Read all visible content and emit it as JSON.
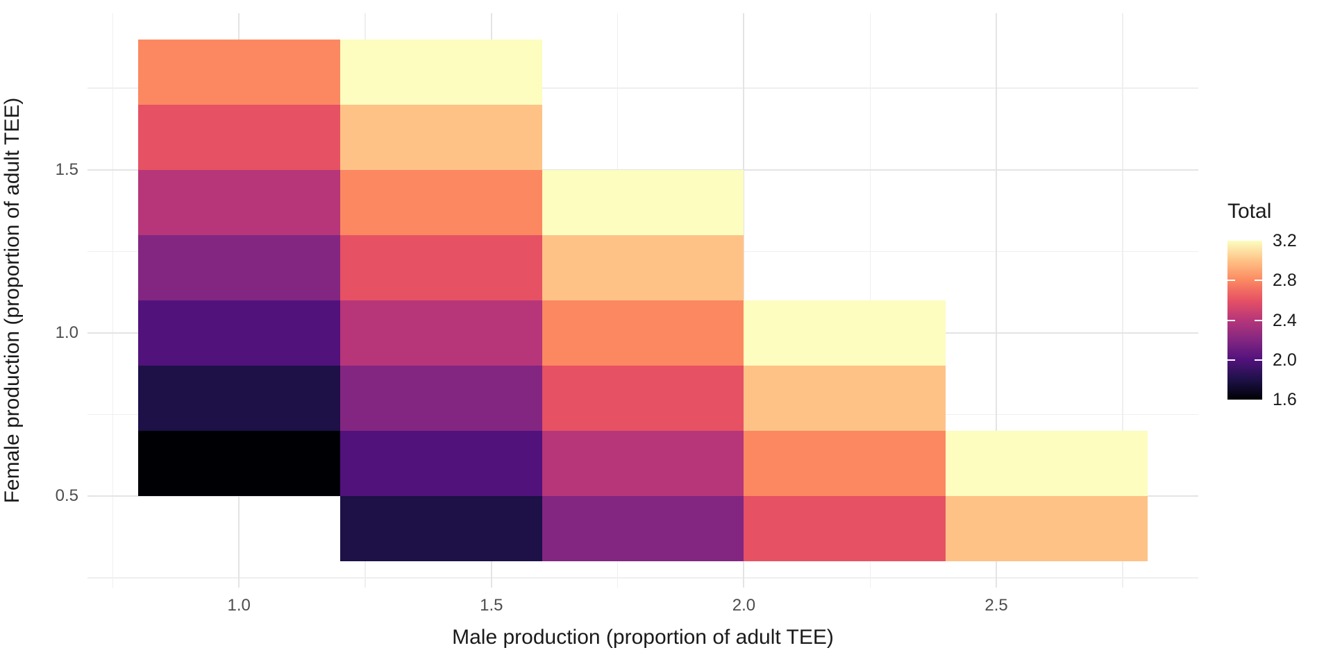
{
  "colors": {
    "background": "#FFFFFF",
    "grid_major": "#E4E4E4",
    "grid_minor": "#EFEFEF",
    "axis_text": "#4D4D4D",
    "title_text": "#1A1A1A"
  },
  "chart_data": {
    "type": "heatmap",
    "title": "",
    "xlabel": "Male production (proportion of adult TEE)",
    "ylabel": "Female production (proportion of adult TEE)",
    "x_range": [
      0.7,
      2.9
    ],
    "y_range": [
      0.22,
      1.98
    ],
    "tile_width": 0.4,
    "tile_height": 0.2,
    "grid": {
      "major": true,
      "minor": true
    },
    "x_ticks": [
      {
        "value": 1.0,
        "label": "1.0"
      },
      {
        "value": 1.5,
        "label": "1.5"
      },
      {
        "value": 2.0,
        "label": "2.0"
      },
      {
        "value": 2.5,
        "label": "2.5"
      }
    ],
    "y_ticks": [
      {
        "value": 0.5,
        "label": "0.5"
      },
      {
        "value": 1.0,
        "label": "1.0"
      },
      {
        "value": 1.5,
        "label": "1.5"
      }
    ],
    "x_grid_minor": [
      0.75,
      1.25,
      1.75,
      2.25,
      2.75
    ],
    "y_grid_minor": [
      0.25,
      0.75,
      1.25,
      1.75
    ],
    "legend": {
      "title": "Total",
      "position": "right",
      "range": [
        1.6,
        3.2
      ],
      "ticks": [
        {
          "value": 3.2,
          "label": "3.2"
        },
        {
          "value": 2.8,
          "label": "2.8"
        },
        {
          "value": 2.4,
          "label": "2.4"
        },
        {
          "value": 2.0,
          "label": "2.0"
        },
        {
          "value": 1.6,
          "label": "1.6"
        }
      ],
      "tick_marks": [
        2.8,
        2.4,
        2.0
      ]
    },
    "color_scale": {
      "name": "magma",
      "domain": [
        1.6,
        3.2
      ],
      "stops": [
        {
          "value": 1.6,
          "color": "#000004"
        },
        {
          "value": 1.8,
          "color": "#1D1147"
        },
        {
          "value": 2.0,
          "color": "#51127C"
        },
        {
          "value": 2.2,
          "color": "#822681"
        },
        {
          "value": 2.4,
          "color": "#B63679"
        },
        {
          "value": 2.6,
          "color": "#E65164"
        },
        {
          "value": 2.8,
          "color": "#FB8861"
        },
        {
          "value": 3.0,
          "color": "#FEC287"
        },
        {
          "value": 3.2,
          "color": "#FCFDBF"
        }
      ]
    },
    "tiles": [
      {
        "male": 1.0,
        "female": 0.6,
        "total": 1.6
      },
      {
        "male": 1.0,
        "female": 0.8,
        "total": 1.8
      },
      {
        "male": 1.0,
        "female": 1.0,
        "total": 2.0
      },
      {
        "male": 1.0,
        "female": 1.2,
        "total": 2.2
      },
      {
        "male": 1.0,
        "female": 1.4,
        "total": 2.4
      },
      {
        "male": 1.0,
        "female": 1.6,
        "total": 2.6
      },
      {
        "male": 1.0,
        "female": 1.8,
        "total": 2.8
      },
      {
        "male": 1.4,
        "female": 0.4,
        "total": 1.8
      },
      {
        "male": 1.4,
        "female": 0.6,
        "total": 2.0
      },
      {
        "male": 1.4,
        "female": 0.8,
        "total": 2.2
      },
      {
        "male": 1.4,
        "female": 1.0,
        "total": 2.4
      },
      {
        "male": 1.4,
        "female": 1.2,
        "total": 2.6
      },
      {
        "male": 1.4,
        "female": 1.4,
        "total": 2.8
      },
      {
        "male": 1.4,
        "female": 1.6,
        "total": 3.0
      },
      {
        "male": 1.4,
        "female": 1.8,
        "total": 3.2
      },
      {
        "male": 1.8,
        "female": 0.4,
        "total": 2.2
      },
      {
        "male": 1.8,
        "female": 0.6,
        "total": 2.4
      },
      {
        "male": 1.8,
        "female": 0.8,
        "total": 2.6
      },
      {
        "male": 1.8,
        "female": 1.0,
        "total": 2.8
      },
      {
        "male": 1.8,
        "female": 1.2,
        "total": 3.0
      },
      {
        "male": 1.8,
        "female": 1.4,
        "total": 3.2
      },
      {
        "male": 2.2,
        "female": 0.4,
        "total": 2.6
      },
      {
        "male": 2.2,
        "female": 0.6,
        "total": 2.8
      },
      {
        "male": 2.2,
        "female": 0.8,
        "total": 3.0
      },
      {
        "male": 2.2,
        "female": 1.0,
        "total": 3.2
      },
      {
        "male": 2.6,
        "female": 0.4,
        "total": 3.0
      },
      {
        "male": 2.6,
        "female": 0.6,
        "total": 3.2
      }
    ]
  }
}
